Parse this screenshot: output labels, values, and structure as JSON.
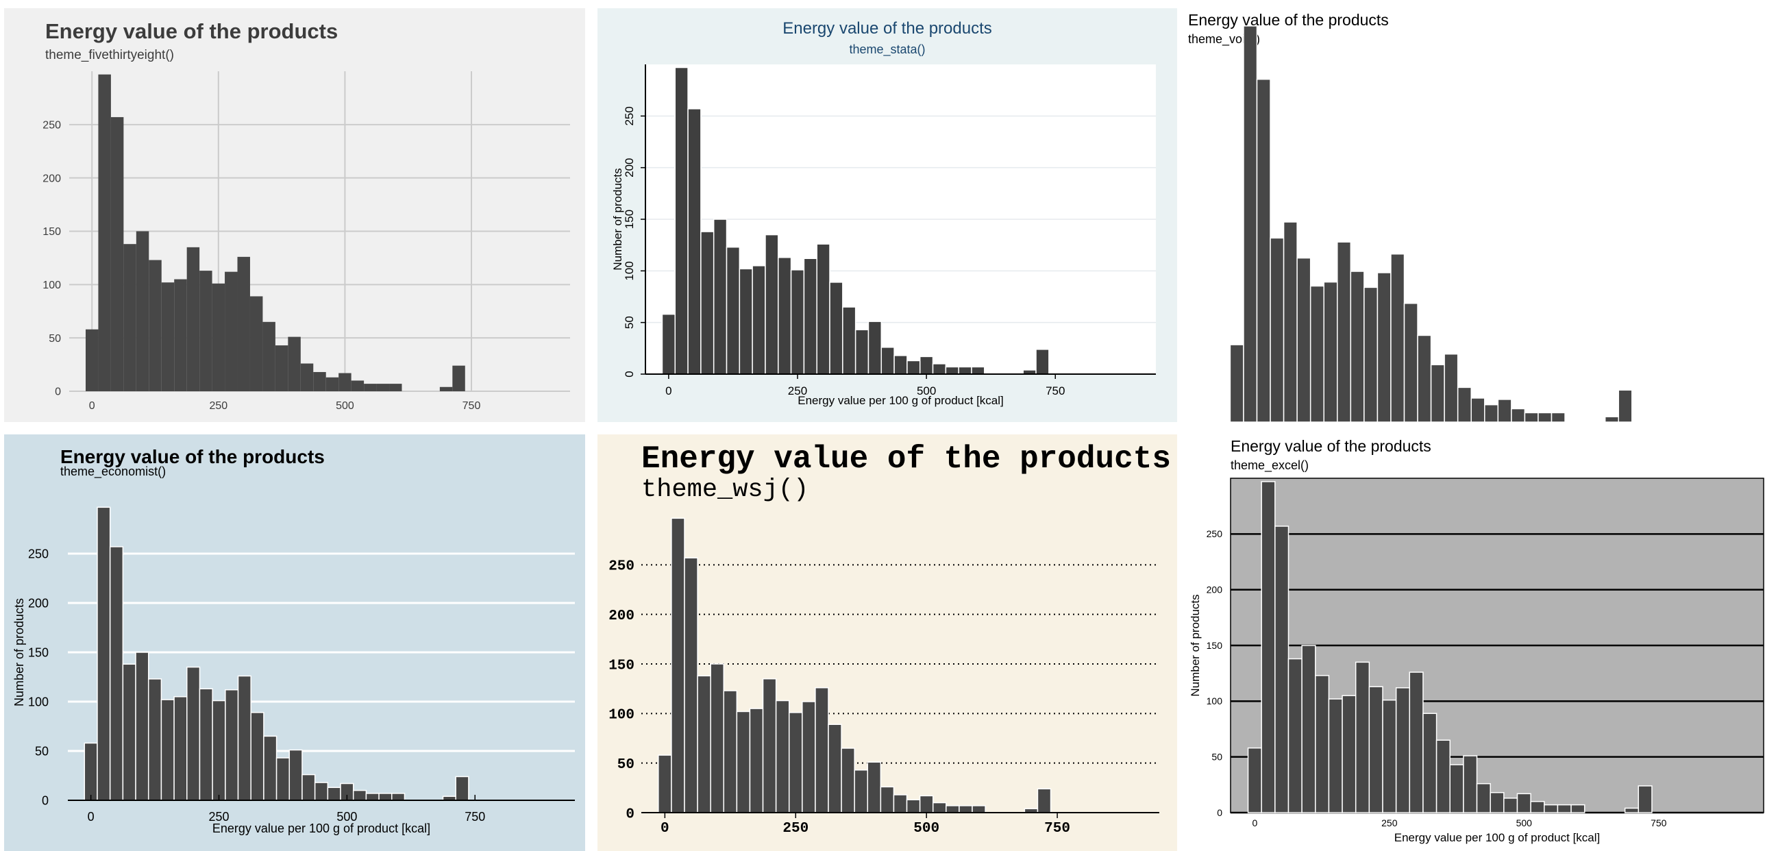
{
  "chart_data": [
    {
      "type": "bar",
      "title": "Energy value of the products",
      "subtitle": "theme_fivethirtyeight()",
      "xlabel": "",
      "ylabel": "",
      "xlim": [
        -45,
        945
      ],
      "ylim": [
        0,
        300
      ],
      "xticks": [
        0,
        250,
        500,
        750
      ],
      "yticks": [
        0,
        50,
        100,
        150,
        200,
        250
      ],
      "grid": true,
      "x": [
        0,
        25,
        50,
        75,
        100,
        125,
        150,
        175,
        200,
        225,
        250,
        275,
        300,
        325,
        350,
        375,
        400,
        425,
        450,
        475,
        500,
        525,
        550,
        575,
        600,
        625,
        650,
        675,
        700,
        725,
        750,
        775,
        800,
        825,
        850,
        875,
        900
      ],
      "values": [
        58,
        297,
        257,
        138,
        150,
        123,
        102,
        105,
        135,
        113,
        101,
        112,
        126,
        89,
        65,
        43,
        51,
        26,
        18,
        13,
        17,
        10,
        7,
        7,
        7,
        0,
        0,
        0,
        4,
        24,
        0,
        0,
        0,
        0,
        0,
        0,
        0
      ]
    },
    {
      "type": "bar",
      "title": "Energy value of the products",
      "subtitle": "theme_stata()",
      "xlabel": "Energy value per 100 g of product [kcal]",
      "ylabel": "Number of products",
      "xlim": [
        -45,
        945
      ],
      "ylim": [
        0,
        300
      ],
      "xticks": [
        0,
        250,
        500,
        750
      ],
      "yticks": [
        0,
        50,
        100,
        150,
        200,
        250
      ],
      "grid": true,
      "x": [
        0,
        25,
        50,
        75,
        100,
        125,
        150,
        175,
        200,
        225,
        250,
        275,
        300,
        325,
        350,
        375,
        400,
        425,
        450,
        475,
        500,
        525,
        550,
        575,
        600,
        625,
        650,
        675,
        700,
        725,
        750,
        775,
        800,
        825,
        850,
        875,
        900
      ],
      "values": [
        58,
        297,
        257,
        138,
        150,
        123,
        102,
        105,
        135,
        113,
        101,
        112,
        126,
        89,
        65,
        43,
        51,
        26,
        18,
        13,
        17,
        10,
        7,
        7,
        7,
        0,
        0,
        0,
        4,
        24,
        0,
        0,
        0,
        0,
        0,
        0,
        0
      ]
    },
    {
      "type": "bar",
      "title": "Energy value of the products",
      "subtitle": "theme_void()",
      "xlabel": "",
      "ylabel": "",
      "xlim": [
        -45,
        945
      ],
      "ylim": [
        0,
        300
      ],
      "xticks": [],
      "yticks": [],
      "grid": false,
      "x": [
        0,
        25,
        50,
        75,
        100,
        125,
        150,
        175,
        200,
        225,
        250,
        275,
        300,
        325,
        350,
        375,
        400,
        425,
        450,
        475,
        500,
        525,
        550,
        575,
        600,
        625,
        650,
        675,
        700,
        725,
        750,
        775,
        800,
        825,
        850,
        875,
        900
      ],
      "values": [
        58,
        297,
        257,
        138,
        150,
        123,
        102,
        105,
        135,
        113,
        101,
        112,
        126,
        89,
        65,
        43,
        51,
        26,
        18,
        13,
        17,
        10,
        7,
        7,
        7,
        0,
        0,
        0,
        4,
        24,
        0,
        0,
        0,
        0,
        0,
        0,
        0
      ]
    },
    {
      "type": "bar",
      "title": "Energy value of the products",
      "subtitle": "theme_economist()",
      "xlabel": "Energy value per 100 g of product [kcal]",
      "ylabel": "Number of products",
      "xlim": [
        -45,
        945
      ],
      "ylim": [
        0,
        300
      ],
      "xticks": [
        0,
        250,
        500,
        750
      ],
      "yticks": [
        0,
        50,
        100,
        150,
        200,
        250
      ],
      "grid": true,
      "x": [
        0,
        25,
        50,
        75,
        100,
        125,
        150,
        175,
        200,
        225,
        250,
        275,
        300,
        325,
        350,
        375,
        400,
        425,
        450,
        475,
        500,
        525,
        550,
        575,
        600,
        625,
        650,
        675,
        700,
        725,
        750,
        775,
        800,
        825,
        850,
        875,
        900
      ],
      "values": [
        58,
        297,
        257,
        138,
        150,
        123,
        102,
        105,
        135,
        113,
        101,
        112,
        126,
        89,
        65,
        43,
        51,
        26,
        18,
        13,
        17,
        10,
        7,
        7,
        7,
        0,
        0,
        0,
        4,
        24,
        0,
        0,
        0,
        0,
        0,
        0,
        0
      ]
    },
    {
      "type": "bar",
      "title": "Energy value of the products",
      "subtitle": "theme_wsj()",
      "xlabel": "",
      "ylabel": "",
      "xlim": [
        -45,
        945
      ],
      "ylim": [
        0,
        300
      ],
      "xticks": [
        0,
        250,
        500,
        750
      ],
      "yticks": [
        0,
        50,
        100,
        150,
        200,
        250
      ],
      "grid": true,
      "x": [
        0,
        25,
        50,
        75,
        100,
        125,
        150,
        175,
        200,
        225,
        250,
        275,
        300,
        325,
        350,
        375,
        400,
        425,
        450,
        475,
        500,
        525,
        550,
        575,
        600,
        625,
        650,
        675,
        700,
        725,
        750,
        775,
        800,
        825,
        850,
        875,
        900
      ],
      "values": [
        58,
        297,
        257,
        138,
        150,
        123,
        102,
        105,
        135,
        113,
        101,
        112,
        126,
        89,
        65,
        43,
        51,
        26,
        18,
        13,
        17,
        10,
        7,
        7,
        7,
        0,
        0,
        0,
        4,
        24,
        0,
        0,
        0,
        0,
        0,
        0,
        0
      ]
    },
    {
      "type": "bar",
      "title": "Energy value of the products",
      "subtitle": "theme_excel()",
      "xlabel": "Energy value per 100 g of product [kcal]",
      "ylabel": "Number of products",
      "xlim": [
        -45,
        945
      ],
      "ylim": [
        0,
        300
      ],
      "xticks": [
        0,
        250,
        500,
        750
      ],
      "yticks": [
        0,
        50,
        100,
        150,
        200,
        250
      ],
      "grid": true,
      "x": [
        0,
        25,
        50,
        75,
        100,
        125,
        150,
        175,
        200,
        225,
        250,
        275,
        300,
        325,
        350,
        375,
        400,
        425,
        450,
        475,
        500,
        525,
        550,
        575,
        600,
        625,
        650,
        675,
        700,
        725,
        750,
        775,
        800,
        825,
        850,
        875,
        900
      ],
      "values": [
        58,
        297,
        257,
        138,
        150,
        123,
        102,
        105,
        135,
        113,
        101,
        112,
        126,
        89,
        65,
        43,
        51,
        26,
        18,
        13,
        17,
        10,
        7,
        7,
        7,
        0,
        0,
        0,
        4,
        24,
        0,
        0,
        0,
        0,
        0,
        0,
        0
      ]
    }
  ]
}
